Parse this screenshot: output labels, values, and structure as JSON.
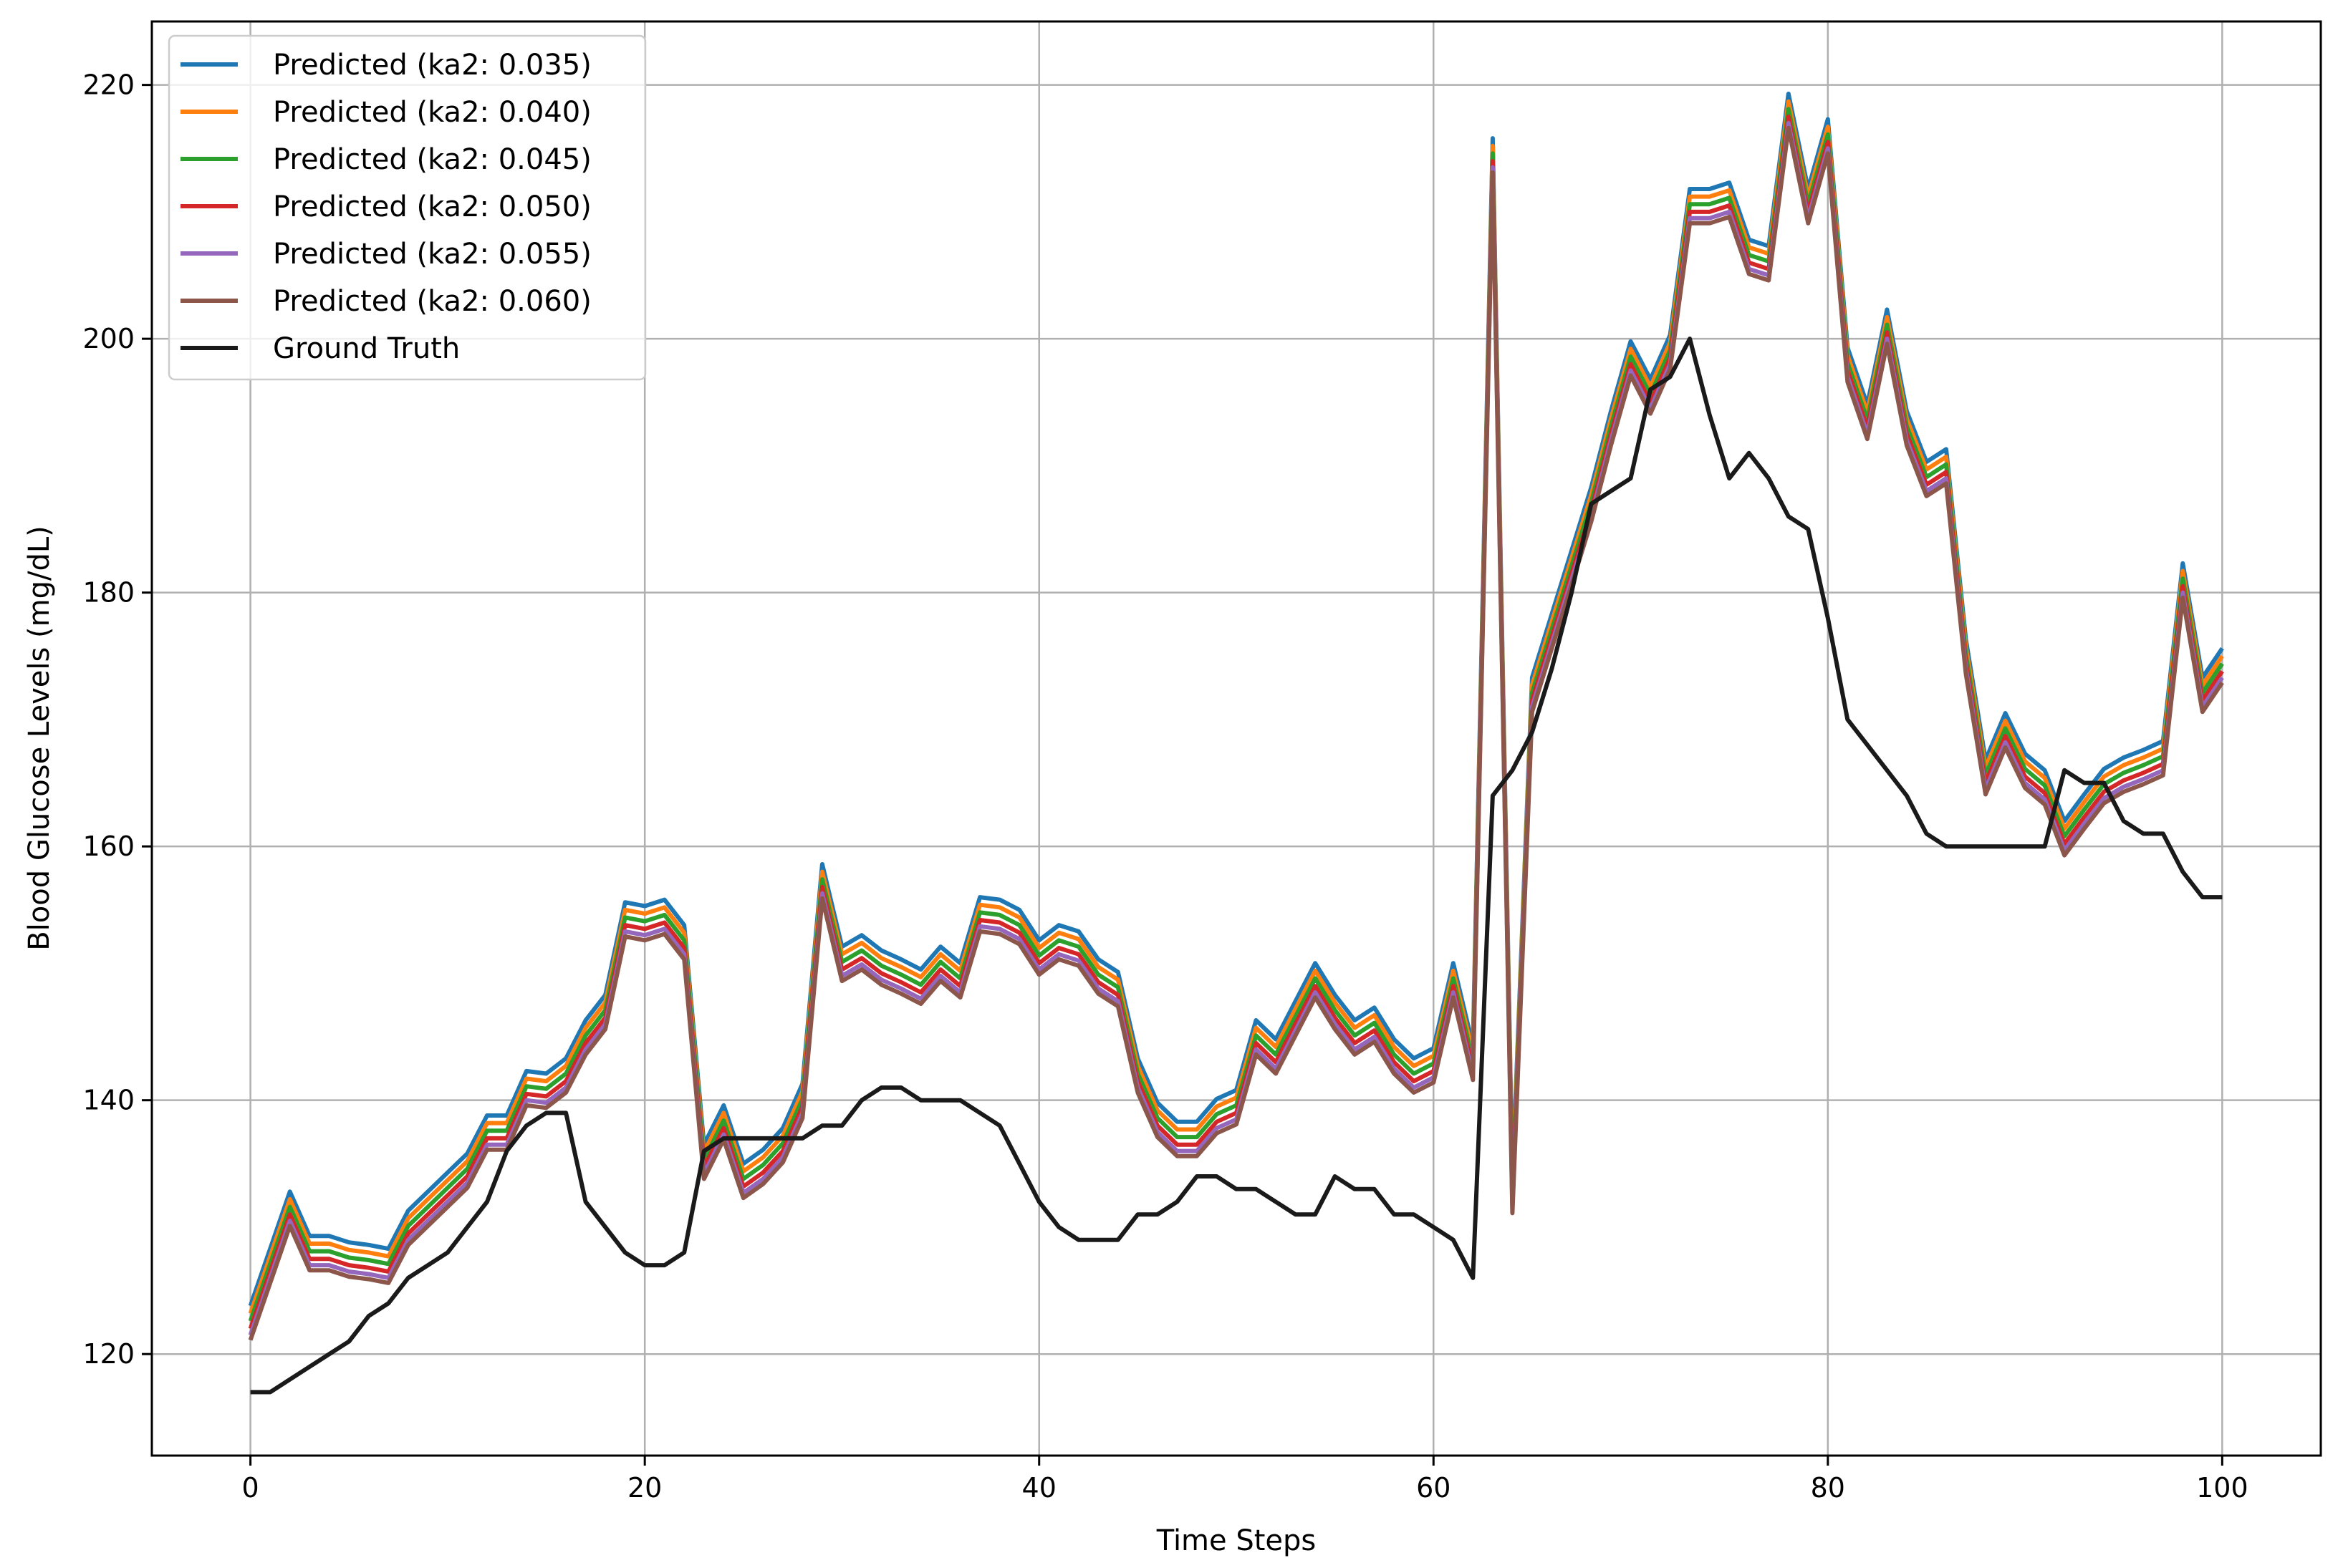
{
  "chart_data": {
    "type": "line",
    "title": "",
    "xlabel": "Time Steps",
    "ylabel": "Blood Glucose Levels (mg/dL)",
    "xlim": [
      -5,
      105
    ],
    "ylim": [
      112,
      225
    ],
    "xticks": [
      0,
      20,
      40,
      60,
      80,
      100
    ],
    "xtick_labels": [
      "0",
      "20",
      "40",
      "60",
      "80",
      "100"
    ],
    "yticks": [
      120,
      140,
      160,
      180,
      200,
      220
    ],
    "ytick_labels": [
      "120",
      "140",
      "160",
      "180",
      "200",
      "220"
    ],
    "grid": true,
    "legend_position": "top-left",
    "x": [
      0,
      1,
      2,
      3,
      4,
      5,
      6,
      7,
      8,
      9,
      10,
      11,
      12,
      13,
      14,
      15,
      16,
      17,
      18,
      19,
      20,
      21,
      22,
      23,
      24,
      25,
      26,
      27,
      28,
      29,
      30,
      31,
      32,
      33,
      34,
      35,
      36,
      37,
      38,
      39,
      40,
      41,
      42,
      43,
      44,
      45,
      46,
      47,
      48,
      49,
      50,
      51,
      52,
      53,
      54,
      55,
      56,
      57,
      58,
      59,
      60,
      61,
      62,
      63,
      64,
      65,
      66,
      67,
      68,
      69,
      70,
      71,
      72,
      73,
      74,
      75,
      76,
      77,
      78,
      79,
      80,
      81,
      82,
      83,
      84,
      85,
      86,
      87,
      88,
      89,
      90,
      91,
      92,
      93,
      94,
      95,
      96,
      97,
      98,
      99,
      100
    ],
    "base_prediction": [
      122.5,
      127,
      131.5,
      128,
      128,
      127.5,
      127.3,
      127,
      130,
      131.5,
      133,
      134.5,
      137.5,
      137.5,
      141,
      140.8,
      142,
      145,
      147,
      154.3,
      154,
      154.5,
      152.5,
      135.2,
      138.3,
      133.7,
      134.8,
      136.5,
      140,
      157.3,
      150.8,
      151.7,
      150.5,
      149.8,
      149,
      150.8,
      149.5,
      154.7,
      154.5,
      153.7,
      151.3,
      152.5,
      152,
      149.8,
      148.8,
      142,
      138.5,
      137,
      137,
      138.8,
      139.5,
      145,
      143.5,
      146.5,
      149.5,
      147,
      145,
      146,
      143.5,
      142,
      142.8,
      149.5,
      143,
      214.5,
      132.5,
      172,
      177,
      182,
      187,
      193,
      198.5,
      195.5,
      199,
      210.5,
      210.5,
      211,
      206.5,
      206,
      218,
      210.5,
      216,
      198,
      193.5,
      201,
      193,
      189,
      190,
      175,
      165.5,
      169.2,
      166,
      164.7,
      160.7,
      162.8,
      164.8,
      165.7,
      166.3,
      167,
      181,
      172,
      174.3
    ],
    "series": [
      {
        "name": "Predicted (ka2: 0.035)",
        "color": "#1f77b4",
        "offset": 1.3
      },
      {
        "name": "Predicted (ka2: 0.040)",
        "color": "#ff7f0e",
        "offset": 0.7
      },
      {
        "name": "Predicted (ka2: 0.045)",
        "color": "#2ca02c",
        "offset": 0.1
      },
      {
        "name": "Predicted (ka2: 0.050)",
        "color": "#d62728",
        "offset": -0.5
      },
      {
        "name": "Predicted (ka2: 0.055)",
        "color": "#9467bd",
        "offset": -1.0
      },
      {
        "name": "Predicted (ka2: 0.060)",
        "color": "#8c564b",
        "offset": -1.4
      }
    ],
    "ground_truth": {
      "name": "Ground Truth",
      "color": "#1a1a1a",
      "values": [
        117,
        117,
        118,
        119,
        120,
        121,
        123,
        124,
        126,
        127,
        128,
        130,
        132,
        136,
        138,
        139,
        139,
        132,
        130,
        128,
        127,
        127,
        128,
        136,
        137,
        137,
        137,
        137,
        137,
        138,
        138,
        140,
        141,
        141,
        140,
        140,
        140,
        139,
        138,
        135,
        132,
        130,
        129,
        129,
        129,
        131,
        131,
        132,
        134,
        134,
        133,
        133,
        132,
        131,
        131,
        134,
        133,
        133,
        131,
        131,
        130,
        129,
        126,
        164,
        166,
        169,
        174,
        180,
        187,
        188,
        189,
        196,
        197,
        200,
        194,
        189,
        191,
        189,
        186,
        185,
        178,
        170,
        168,
        166,
        164,
        161,
        160,
        160,
        160,
        160,
        160,
        160,
        166,
        165,
        165,
        162,
        161,
        161,
        158,
        156,
        156
      ]
    }
  }
}
